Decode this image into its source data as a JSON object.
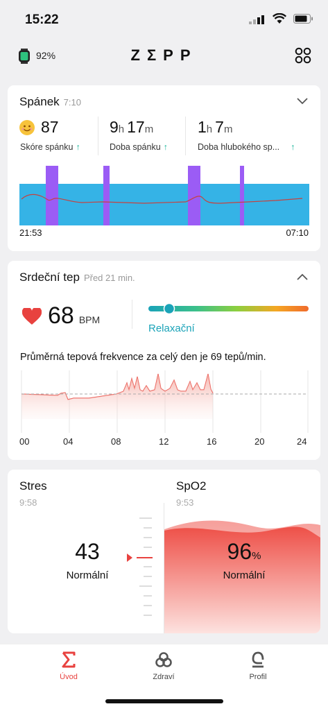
{
  "status": {
    "time": "15:22"
  },
  "header": {
    "battery_percent": "92%",
    "logo": "ZΣPP"
  },
  "sleep": {
    "title": "Spánek",
    "time": "7:10",
    "score": "87",
    "score_label": "Skóre spánku",
    "duration_h": "9",
    "duration_m": "17",
    "duration_label": "Doba spánku",
    "deep_h": "1",
    "deep_m": "7",
    "deep_label": "Doba hlubokého sp...",
    "h_unit": "h",
    "m_unit": "m",
    "start": "21:53",
    "end": "07:10"
  },
  "heart": {
    "title": "Srdeční tep",
    "ago": "Před 21 min.",
    "bpm": "68",
    "bpm_unit": "BPM",
    "zone": "Relaxační",
    "summary": "Průměrná tepová frekvence za celý den je 69 tepů/min.",
    "hours": [
      "00",
      "04",
      "08",
      "12",
      "16",
      "20",
      "24"
    ]
  },
  "stress": {
    "title": "Stres",
    "time": "9:58",
    "value": "43",
    "label": "Normální"
  },
  "spo2": {
    "title": "SpO2",
    "time": "9:53",
    "value": "96",
    "unit": "%",
    "label": "Normální"
  },
  "nav": {
    "home": "Úvod",
    "health": "Zdraví",
    "profile": "Profil"
  },
  "colors": {
    "accent": "#e8423f",
    "sleep_bar": "#35b3e6",
    "deep_sleep": "#9b5cf5",
    "teal": "#1aa3b8"
  }
}
